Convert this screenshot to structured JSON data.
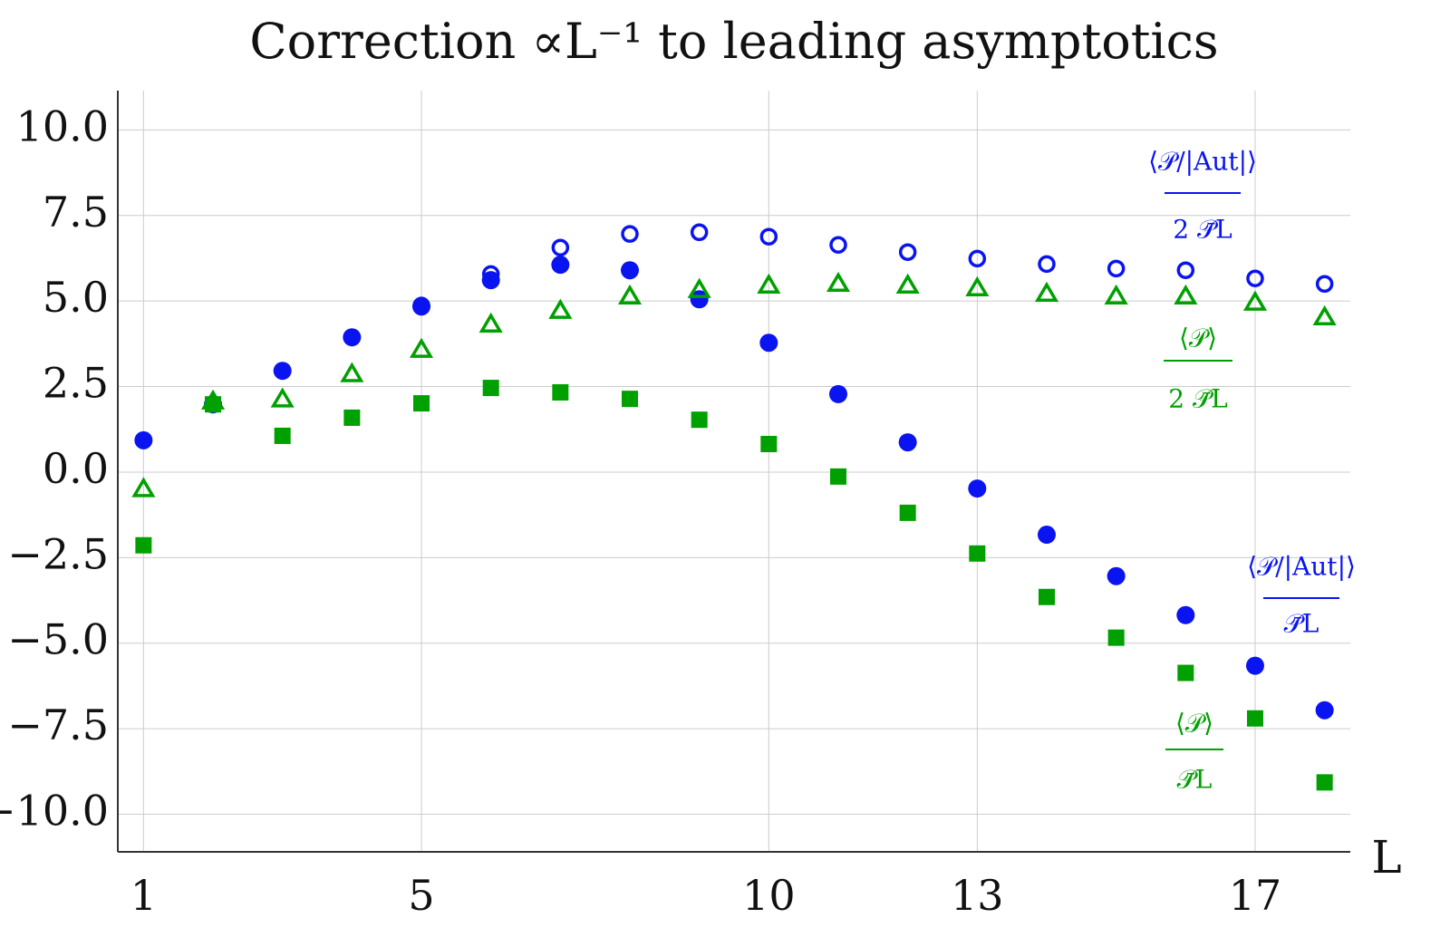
{
  "chart_data": {
    "type": "scatter",
    "title": "Correction ∝L⁻¹ to leading asymptotics",
    "x_label": "L",
    "x": [
      1,
      2,
      3,
      4,
      5,
      6,
      7,
      8,
      9,
      10,
      11,
      12,
      13,
      14,
      15,
      16,
      17,
      18
    ],
    "series": [
      {
        "name": {
          "numerator": "⟨𝒫/|Aut|⟩",
          "denominator": "2 𝒫̄L"
        },
        "color": "#0a14f0",
        "marker": "circle-open",
        "values": [
          null,
          null,
          null,
          null,
          4.87,
          5.79,
          6.56,
          6.96,
          7.01,
          6.88,
          6.64,
          6.43,
          6.24,
          6.08,
          5.95,
          5.9,
          5.66,
          5.5
        ]
      },
      {
        "name": {
          "numerator": "⟨𝒫/|Aut|⟩",
          "denominator": "𝒫̄L"
        },
        "color": "#0a14f0",
        "marker": "circle",
        "values": [
          0.93,
          1.98,
          2.96,
          3.94,
          4.84,
          5.61,
          6.06,
          5.9,
          5.05,
          3.78,
          2.28,
          0.87,
          -0.48,
          -1.83,
          -3.04,
          -4.18,
          -5.66,
          -6.96
        ]
      },
      {
        "name": {
          "numerator": "⟨𝒫⟩",
          "denominator": "2 𝒫̄L"
        },
        "color": "#00a000",
        "marker": "triangle-open",
        "values": [
          -0.5,
          2.06,
          2.12,
          2.86,
          3.57,
          4.31,
          4.71,
          5.13,
          5.32,
          5.45,
          5.5,
          5.45,
          5.37,
          5.21,
          5.13,
          5.13,
          4.95,
          4.52
        ]
      },
      {
        "name": {
          "numerator": "⟨𝒫⟩",
          "denominator": "𝒫̄L"
        },
        "color": "#00a000",
        "marker": "square",
        "values": [
          -2.14,
          1.98,
          1.06,
          1.59,
          2.01,
          2.46,
          2.33,
          2.14,
          1.53,
          0.82,
          -0.13,
          -1.19,
          -2.38,
          -3.65,
          -4.84,
          -5.87,
          -7.2,
          -9.07
        ]
      }
    ],
    "xlim": [
      0.63,
      18.37
    ],
    "ylim": [
      -11.1,
      11.15
    ],
    "xticks": [
      1,
      5,
      10,
      13,
      17
    ],
    "yticks": [
      {
        "value": 10,
        "label": "10.0"
      },
      7.5,
      {
        "value": 5,
        "label": "5.0"
      },
      2.5,
      {
        "value": 0,
        "label": "0.0"
      },
      {
        "value": -2.5,
        "label": "−2.5"
      },
      {
        "value": -5,
        "label": "−5.0"
      },
      {
        "value": -7.5,
        "label": "−7.5"
      },
      {
        "value": -10,
        "label": "−10.0"
      }
    ],
    "grid": true
  }
}
